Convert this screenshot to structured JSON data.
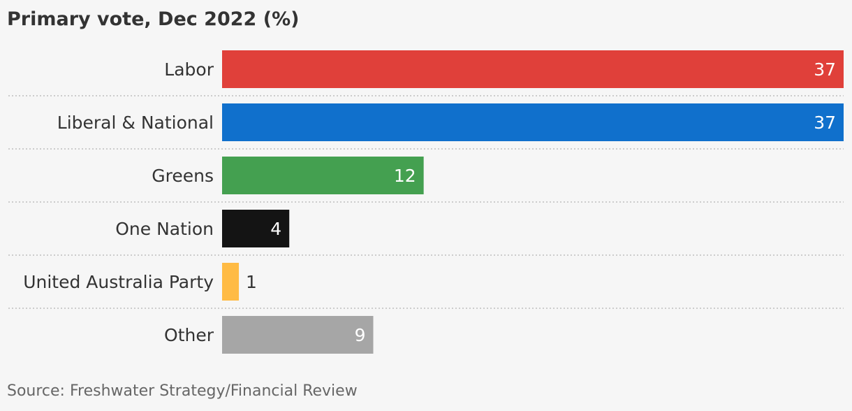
{
  "title": "Primary vote, Dec 2022 (%)",
  "source": "Source: Freshwater Strategy/Financial Review",
  "chart_data": {
    "type": "bar",
    "orientation": "horizontal",
    "title": "Primary vote, Dec 2022 (%)",
    "xlabel": "",
    "ylabel": "",
    "categories": [
      "Labor",
      "Liberal & National",
      "Greens",
      "One Nation",
      "United Australia Party",
      "Other"
    ],
    "values": [
      37,
      37,
      12,
      4,
      1,
      9
    ],
    "colors": [
      "#e0403a",
      "#1070cc",
      "#44a050",
      "#141414",
      "#ffbb44",
      "#a6a6a6"
    ],
    "xlim": [
      0,
      37
    ],
    "grid": false,
    "legend": "none"
  }
}
